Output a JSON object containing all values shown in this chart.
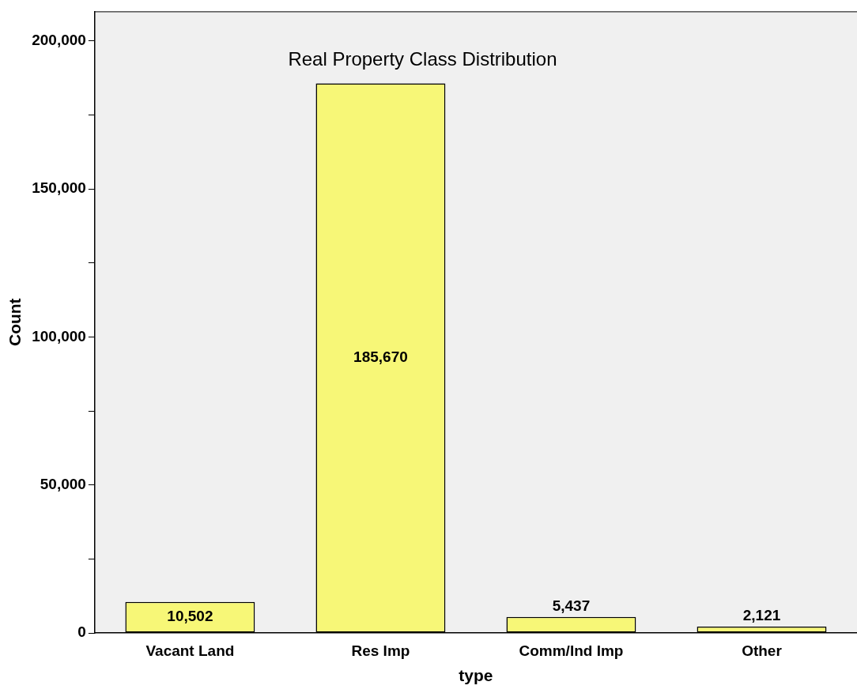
{
  "chart_data": {
    "type": "bar",
    "title": "Real Property Class Distribution",
    "xlabel": "type",
    "ylabel": "Count",
    "categories": [
      "Vacant Land",
      "Res Imp",
      "Comm/Ind Imp",
      "Other"
    ],
    "values": [
      10502,
      185670,
      5437,
      2121
    ],
    "value_labels": [
      "10,502",
      "185,670",
      "5,437",
      "2,121"
    ],
    "color": "#f7f777",
    "ylim": [
      0,
      210000
    ],
    "yticks": [
      {
        "value": 0,
        "label": "0"
      },
      {
        "value": 25000,
        "label": null
      },
      {
        "value": 50000,
        "label": "50,000"
      },
      {
        "value": 75000,
        "label": null
      },
      {
        "value": 100000,
        "label": "100,000"
      },
      {
        "value": 125000,
        "label": null
      },
      {
        "value": 150000,
        "label": "150,000"
      },
      {
        "value": 175000,
        "label": null
      },
      {
        "value": 200000,
        "label": "200,000"
      }
    ],
    "grid": false,
    "legend": false
  }
}
